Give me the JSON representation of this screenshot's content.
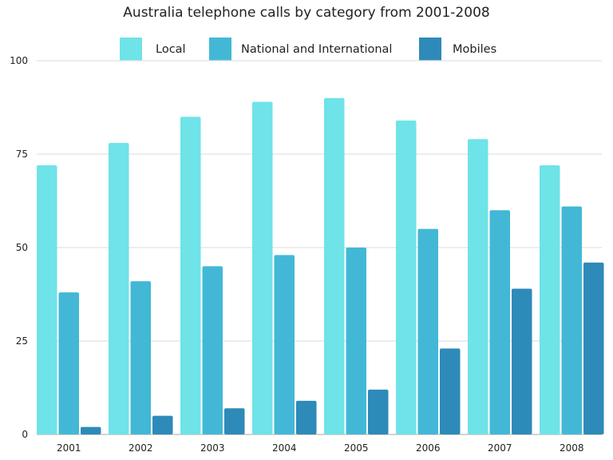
{
  "chart_data": {
    "type": "bar",
    "title": "Australia telephone calls by category from 2001-2008",
    "xlabel": "",
    "ylabel": "",
    "categories": [
      "2001",
      "2002",
      "2003",
      "2004",
      "2005",
      "2006",
      "2007",
      "2008"
    ],
    "series": [
      {
        "name": "Local",
        "color": "#6ee3e8",
        "values": [
          72,
          78,
          85,
          89,
          90,
          84,
          79,
          72
        ]
      },
      {
        "name": "National and International",
        "color": "#42b8d6",
        "values": [
          38,
          41,
          45,
          48,
          50,
          55,
          60,
          61
        ]
      },
      {
        "name": "Mobiles",
        "color": "#2e8ab8",
        "values": [
          2,
          5,
          7,
          9,
          12,
          23,
          39,
          46
        ]
      }
    ],
    "ylim": [
      0,
      100
    ],
    "yticks": [
      0,
      25,
      50,
      75,
      100
    ],
    "grid": true,
    "legend": "top"
  }
}
